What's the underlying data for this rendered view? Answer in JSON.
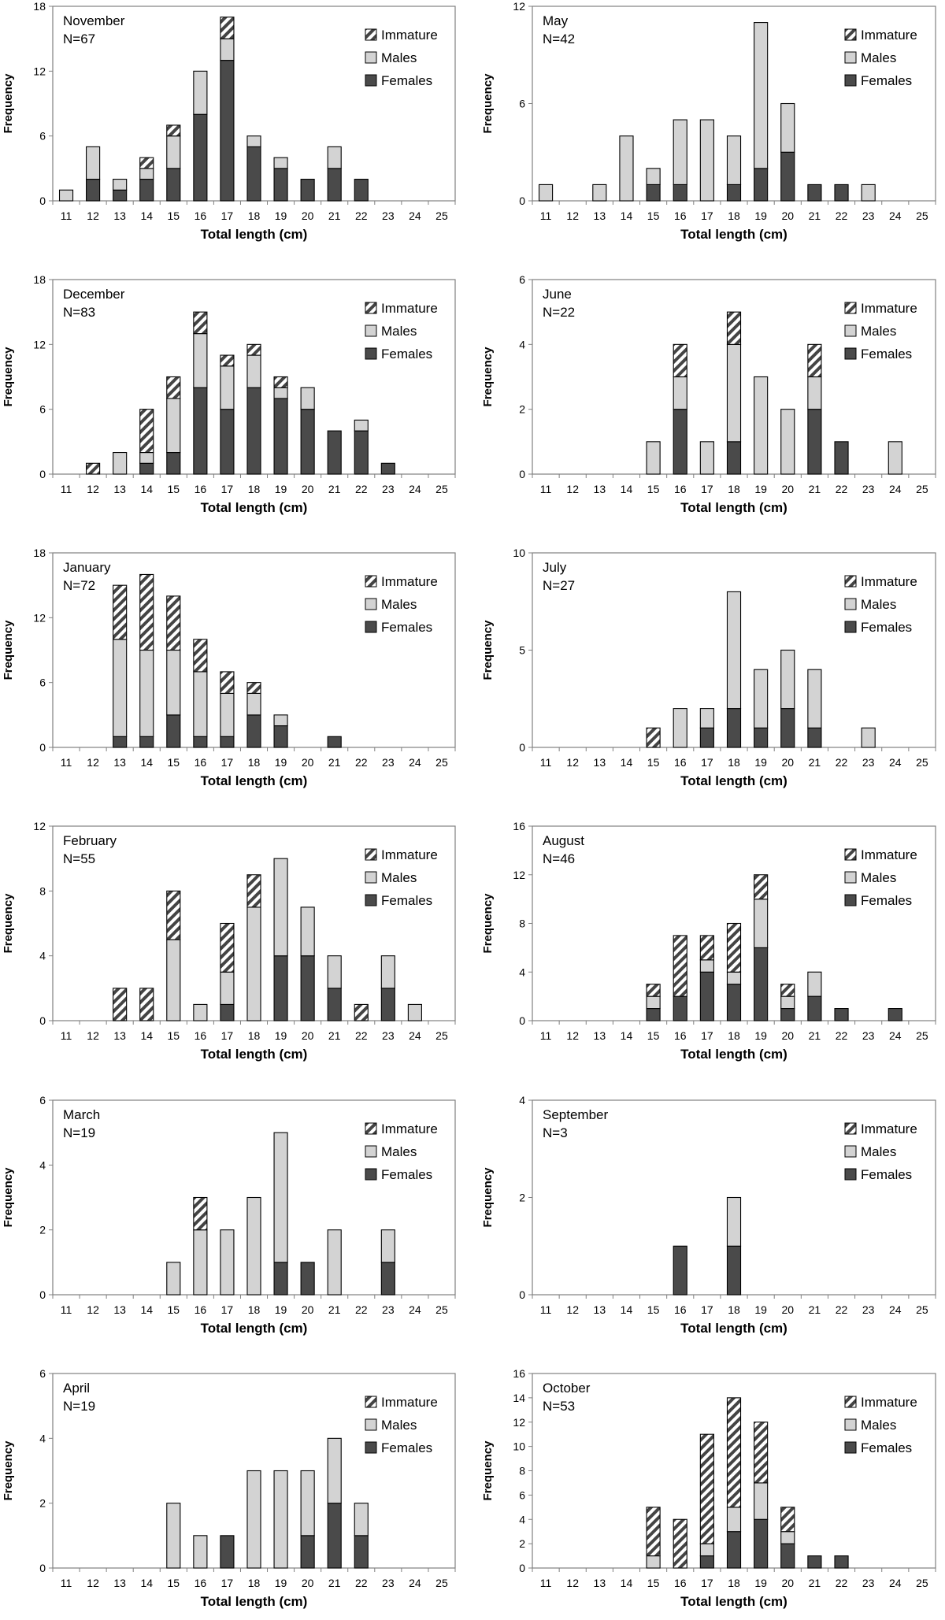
{
  "colors": {
    "females": "#4a4a4a",
    "males": "#d3d3d3",
    "immature_stripe": "#444444",
    "immature_bg": "#ffffff",
    "axis": "#808080",
    "outline": "#000000"
  },
  "chart_data": [
    {
      "type": "bar",
      "stacked": true,
      "month": "November",
      "n_label": "N=67",
      "xlabel": "Total length (cm)",
      "ylabel": "Frequency",
      "ylim": [
        0,
        18
      ],
      "yticks": [
        0,
        6,
        12,
        18
      ],
      "categories": [
        "11",
        "12",
        "13",
        "14",
        "15",
        "16",
        "17",
        "18",
        "19",
        "20",
        "21",
        "22",
        "23",
        "24",
        "25"
      ],
      "series": [
        {
          "name": "Females",
          "values": [
            0,
            2,
            1,
            2,
            3,
            8,
            13,
            5,
            3,
            2,
            3,
            2,
            0,
            0,
            0
          ]
        },
        {
          "name": "Males",
          "values": [
            1,
            3,
            1,
            1,
            3,
            4,
            2,
            1,
            1,
            0,
            2,
            0,
            0,
            0,
            0
          ]
        },
        {
          "name": "Immature",
          "values": [
            0,
            0,
            0,
            1,
            1,
            0,
            2,
            0,
            0,
            0,
            0,
            0,
            0,
            0,
            0
          ]
        }
      ],
      "legend": [
        "Immature",
        "Males",
        "Females"
      ]
    },
    {
      "type": "bar",
      "stacked": true,
      "month": "May",
      "n_label": "N=42",
      "xlabel": "Total length (cm)",
      "ylabel": "Frequency",
      "ylim": [
        0,
        12
      ],
      "yticks": [
        0,
        6,
        12
      ],
      "categories": [
        "11",
        "12",
        "13",
        "14",
        "15",
        "16",
        "17",
        "18",
        "19",
        "20",
        "21",
        "22",
        "23",
        "24",
        "25"
      ],
      "series": [
        {
          "name": "Females",
          "values": [
            0,
            0,
            0,
            0,
            1,
            1,
            0,
            1,
            2,
            3,
            1,
            1,
            0,
            0,
            0
          ]
        },
        {
          "name": "Males",
          "values": [
            1,
            0,
            1,
            4,
            1,
            4,
            5,
            3,
            9,
            3,
            0,
            0,
            1,
            0,
            0
          ]
        },
        {
          "name": "Immature",
          "values": [
            0,
            0,
            0,
            0,
            0,
            0,
            0,
            0,
            0,
            0,
            0,
            0,
            0,
            0,
            0
          ]
        }
      ],
      "legend": [
        "Immature",
        "Males",
        "Females"
      ]
    },
    {
      "type": "bar",
      "stacked": true,
      "month": "December",
      "n_label": "N=83",
      "xlabel": "Total length (cm)",
      "ylabel": "Frequency",
      "ylim": [
        0,
        18
      ],
      "yticks": [
        0,
        6,
        12,
        18
      ],
      "categories": [
        "11",
        "12",
        "13",
        "14",
        "15",
        "16",
        "17",
        "18",
        "19",
        "20",
        "21",
        "22",
        "23",
        "24",
        "25"
      ],
      "series": [
        {
          "name": "Females",
          "values": [
            0,
            0,
            0,
            1,
            2,
            8,
            6,
            8,
            7,
            6,
            4,
            4,
            1,
            0,
            0
          ]
        },
        {
          "name": "Males",
          "values": [
            0,
            0,
            2,
            1,
            5,
            5,
            4,
            3,
            1,
            2,
            0,
            1,
            0,
            0,
            0
          ]
        },
        {
          "name": "Immature",
          "values": [
            0,
            1,
            0,
            4,
            2,
            2,
            1,
            1,
            1,
            0,
            0,
            0,
            0,
            0,
            0
          ]
        }
      ],
      "legend": [
        "Immature",
        "Males",
        "Females"
      ]
    },
    {
      "type": "bar",
      "stacked": true,
      "month": "June",
      "n_label": "N=22",
      "xlabel": "Total length (cm)",
      "ylabel": "Frequency",
      "ylim": [
        0,
        6
      ],
      "yticks": [
        0,
        2,
        4,
        6
      ],
      "categories": [
        "11",
        "12",
        "13",
        "14",
        "15",
        "16",
        "17",
        "18",
        "19",
        "20",
        "21",
        "22",
        "23",
        "24",
        "25"
      ],
      "series": [
        {
          "name": "Females",
          "values": [
            0,
            0,
            0,
            0,
            0,
            2,
            0,
            1,
            0,
            0,
            2,
            1,
            0,
            0,
            0
          ]
        },
        {
          "name": "Males",
          "values": [
            0,
            0,
            0,
            0,
            1,
            1,
            1,
            3,
            3,
            2,
            1,
            0,
            0,
            1,
            0
          ]
        },
        {
          "name": "Immature",
          "values": [
            0,
            0,
            0,
            0,
            0,
            1,
            0,
            1,
            0,
            0,
            1,
            0,
            0,
            0,
            0
          ]
        }
      ],
      "legend": [
        "Immature",
        "Males",
        "Females"
      ]
    },
    {
      "type": "bar",
      "stacked": true,
      "month": "January",
      "n_label": "N=72",
      "xlabel": "Total length (cm)",
      "ylabel": "Frequency",
      "ylim": [
        0,
        18
      ],
      "yticks": [
        0,
        6,
        12,
        18
      ],
      "categories": [
        "11",
        "12",
        "13",
        "14",
        "15",
        "16",
        "17",
        "18",
        "19",
        "20",
        "21",
        "22",
        "23",
        "24",
        "25"
      ],
      "series": [
        {
          "name": "Females",
          "values": [
            0,
            0,
            1,
            1,
            3,
            1,
            1,
            3,
            2,
            0,
            1,
            0,
            0,
            0,
            0
          ]
        },
        {
          "name": "Males",
          "values": [
            0,
            0,
            9,
            8,
            6,
            6,
            4,
            2,
            1,
            0,
            0,
            0,
            0,
            0,
            0
          ]
        },
        {
          "name": "Immature",
          "values": [
            0,
            0,
            5,
            7,
            5,
            3,
            2,
            1,
            0,
            0,
            0,
            0,
            0,
            0,
            0
          ]
        }
      ],
      "legend": [
        "Immature",
        "Males",
        "Females"
      ]
    },
    {
      "type": "bar",
      "stacked": true,
      "month": "July",
      "n_label": "N=27",
      "xlabel": "Total length (cm)",
      "ylabel": "Frequency",
      "ylim": [
        0,
        10
      ],
      "yticks": [
        0,
        5,
        10
      ],
      "categories": [
        "11",
        "12",
        "13",
        "14",
        "15",
        "16",
        "17",
        "18",
        "19",
        "20",
        "21",
        "22",
        "23",
        "24",
        "25"
      ],
      "series": [
        {
          "name": "Females",
          "values": [
            0,
            0,
            0,
            0,
            0,
            0,
            1,
            2,
            1,
            2,
            1,
            0,
            0,
            0,
            0
          ]
        },
        {
          "name": "Males",
          "values": [
            0,
            0,
            0,
            0,
            0,
            2,
            1,
            6,
            3,
            3,
            3,
            0,
            1,
            0,
            0
          ]
        },
        {
          "name": "Immature",
          "values": [
            0,
            0,
            0,
            0,
            1,
            0,
            0,
            0,
            0,
            0,
            0,
            0,
            0,
            0,
            0
          ]
        }
      ],
      "legend": [
        "Immature",
        "Males",
        "Females"
      ]
    },
    {
      "type": "bar",
      "stacked": true,
      "month": "February",
      "n_label": "N=55",
      "xlabel": "Total length (cm)",
      "ylabel": "Frequency",
      "ylim": [
        0,
        12
      ],
      "yticks": [
        0,
        4,
        8,
        12
      ],
      "categories": [
        "11",
        "12",
        "13",
        "14",
        "15",
        "16",
        "17",
        "18",
        "19",
        "20",
        "21",
        "22",
        "23",
        "24",
        "25"
      ],
      "series": [
        {
          "name": "Females",
          "values": [
            0,
            0,
            0,
            0,
            0,
            0,
            1,
            0,
            4,
            4,
            2,
            0,
            2,
            0,
            0
          ]
        },
        {
          "name": "Males",
          "values": [
            0,
            0,
            0,
            0,
            5,
            1,
            2,
            7,
            6,
            3,
            2,
            0,
            2,
            1,
            0
          ]
        },
        {
          "name": "Immature",
          "values": [
            0,
            0,
            2,
            2,
            3,
            0,
            3,
            2,
            0,
            0,
            0,
            1,
            0,
            0,
            0
          ]
        }
      ],
      "legend": [
        "Immature",
        "Males",
        "Females"
      ]
    },
    {
      "type": "bar",
      "stacked": true,
      "month": "August",
      "n_label": "N=46",
      "xlabel": "Total length (cm)",
      "ylabel": "Frequency",
      "ylim": [
        0,
        16
      ],
      "yticks": [
        0,
        4,
        8,
        12,
        16
      ],
      "categories": [
        "11",
        "12",
        "13",
        "14",
        "15",
        "16",
        "17",
        "18",
        "19",
        "20",
        "21",
        "22",
        "23",
        "24",
        "25"
      ],
      "series": [
        {
          "name": "Females",
          "values": [
            0,
            0,
            0,
            0,
            1,
            2,
            4,
            3,
            6,
            1,
            2,
            1,
            0,
            1,
            0
          ]
        },
        {
          "name": "Males",
          "values": [
            0,
            0,
            0,
            0,
            1,
            0,
            1,
            1,
            4,
            1,
            2,
            0,
            0,
            0,
            0
          ]
        },
        {
          "name": "Immature",
          "values": [
            0,
            0,
            0,
            0,
            1,
            5,
            2,
            4,
            2,
            1,
            0,
            0,
            0,
            0,
            0
          ]
        }
      ],
      "legend": [
        "Immature",
        "Males",
        "Females"
      ]
    },
    {
      "type": "bar",
      "stacked": true,
      "month": "March",
      "n_label": "N=19",
      "xlabel": "Total length (cm)",
      "ylabel": "Frequency",
      "ylim": [
        0,
        6
      ],
      "yticks": [
        0,
        2,
        4,
        6
      ],
      "categories": [
        "11",
        "12",
        "13",
        "14",
        "15",
        "16",
        "17",
        "18",
        "19",
        "20",
        "21",
        "22",
        "23",
        "24",
        "25"
      ],
      "series": [
        {
          "name": "Females",
          "values": [
            0,
            0,
            0,
            0,
            0,
            0,
            0,
            0,
            1,
            1,
            0,
            0,
            1,
            0,
            0
          ]
        },
        {
          "name": "Males",
          "values": [
            0,
            0,
            0,
            0,
            1,
            2,
            2,
            3,
            4,
            0,
            2,
            0,
            1,
            0,
            0
          ]
        },
        {
          "name": "Immature",
          "values": [
            0,
            0,
            0,
            0,
            0,
            1,
            0,
            0,
            0,
            0,
            0,
            0,
            0,
            0,
            0
          ]
        }
      ],
      "legend": [
        "Immature",
        "Males",
        "Females"
      ]
    },
    {
      "type": "bar",
      "stacked": true,
      "month": "September",
      "n_label": "N=3",
      "xlabel": "Total length (cm)",
      "ylabel": "Frequency",
      "ylim": [
        0,
        4
      ],
      "yticks": [
        0,
        2,
        4
      ],
      "categories": [
        "11",
        "12",
        "13",
        "14",
        "15",
        "16",
        "17",
        "18",
        "19",
        "20",
        "21",
        "22",
        "23",
        "24",
        "25"
      ],
      "series": [
        {
          "name": "Females",
          "values": [
            0,
            0,
            0,
            0,
            0,
            1,
            0,
            1,
            0,
            0,
            0,
            0,
            0,
            0,
            0
          ]
        },
        {
          "name": "Males",
          "values": [
            0,
            0,
            0,
            0,
            0,
            0,
            0,
            1,
            0,
            0,
            0,
            0,
            0,
            0,
            0
          ]
        },
        {
          "name": "Immature",
          "values": [
            0,
            0,
            0,
            0,
            0,
            0,
            0,
            0,
            0,
            0,
            0,
            0,
            0,
            0,
            0
          ]
        }
      ],
      "legend": [
        "Immature",
        "Males",
        "Females"
      ]
    },
    {
      "type": "bar",
      "stacked": true,
      "month": "April",
      "n_label": "N=19",
      "xlabel": "Total length (cm)",
      "ylabel": "Frequency",
      "ylim": [
        0,
        6
      ],
      "yticks": [
        0,
        2,
        4,
        6
      ],
      "categories": [
        "11",
        "12",
        "13",
        "14",
        "15",
        "16",
        "17",
        "18",
        "19",
        "20",
        "21",
        "22",
        "23",
        "24",
        "25"
      ],
      "series": [
        {
          "name": "Females",
          "values": [
            0,
            0,
            0,
            0,
            0,
            0,
            1,
            0,
            0,
            1,
            2,
            1,
            0,
            0,
            0
          ]
        },
        {
          "name": "Males",
          "values": [
            0,
            0,
            0,
            0,
            2,
            1,
            0,
            3,
            3,
            2,
            2,
            1,
            0,
            0,
            0
          ]
        },
        {
          "name": "Immature",
          "values": [
            0,
            0,
            0,
            0,
            0,
            0,
            0,
            0,
            0,
            0,
            0,
            0,
            0,
            0,
            0
          ]
        }
      ],
      "legend": [
        "Immature",
        "Males",
        "Females"
      ]
    },
    {
      "type": "bar",
      "stacked": true,
      "month": "October",
      "n_label": "N=53",
      "xlabel": "Total length (cm)",
      "ylabel": "Frequency",
      "ylim": [
        0,
        16
      ],
      "yticks": [
        0,
        2,
        4,
        6,
        8,
        10,
        12,
        14,
        16
      ],
      "categories": [
        "11",
        "12",
        "13",
        "14",
        "15",
        "16",
        "17",
        "18",
        "19",
        "20",
        "21",
        "22",
        "23",
        "24",
        "25"
      ],
      "series": [
        {
          "name": "Females",
          "values": [
            0,
            0,
            0,
            0,
            0,
            0,
            1,
            3,
            4,
            2,
            1,
            1,
            0,
            0,
            0
          ]
        },
        {
          "name": "Males",
          "values": [
            0,
            0,
            0,
            0,
            1,
            0,
            1,
            2,
            3,
            1,
            0,
            0,
            0,
            0,
            0
          ]
        },
        {
          "name": "Immature",
          "values": [
            0,
            0,
            0,
            0,
            4,
            4,
            9,
            9,
            5,
            2,
            0,
            0,
            0,
            0,
            0
          ]
        }
      ],
      "legend": [
        "Immature",
        "Males",
        "Females"
      ]
    }
  ]
}
